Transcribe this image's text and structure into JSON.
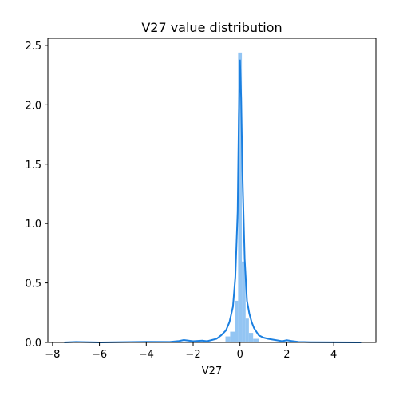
{
  "chart_data": {
    "type": "histogram+kde",
    "title": "V27 value distribution",
    "xlabel": "V27",
    "ylabel": "",
    "xlim": [
      -8.2,
      5.8
    ],
    "ylim": [
      0,
      2.56
    ],
    "xticks": [
      -8,
      -6,
      -4,
      -2,
      0,
      2,
      4
    ],
    "xtick_labels": [
      "−8",
      "−6",
      "−4",
      "−2",
      "0",
      "2",
      "4"
    ],
    "yticks": [
      0.0,
      0.5,
      1.0,
      1.5,
      2.0,
      2.5
    ],
    "ytick_labels": [
      "0.0",
      "0.5",
      "1.0",
      "1.5",
      "2.0",
      "2.5"
    ],
    "grid": false,
    "legend": "none",
    "colors": {
      "bar_fill": "#93c5f3",
      "kde_line": "#1a7fe0"
    },
    "bins": [
      {
        "x0": -0.62,
        "x1": -0.42,
        "density": 0.05
      },
      {
        "x0": -0.42,
        "x1": -0.22,
        "density": 0.09
      },
      {
        "x0": -0.22,
        "x1": -0.08,
        "density": 0.35
      },
      {
        "x0": -0.08,
        "x1": 0.08,
        "density": 2.44
      },
      {
        "x0": 0.08,
        "x1": 0.24,
        "density": 0.68
      },
      {
        "x0": 0.24,
        "x1": 0.38,
        "density": 0.2
      },
      {
        "x0": 0.38,
        "x1": 0.56,
        "density": 0.08
      },
      {
        "x0": 0.56,
        "x1": 0.8,
        "density": 0.03
      }
    ],
    "kde": {
      "x": [
        -7.5,
        -7.0,
        -6.0,
        -5.0,
        -4.0,
        -3.0,
        -2.6,
        -2.4,
        -2.0,
        -1.6,
        -1.4,
        -1.2,
        -1.0,
        -0.8,
        -0.6,
        -0.45,
        -0.3,
        -0.2,
        -0.1,
        -0.05,
        0.0,
        0.05,
        0.1,
        0.2,
        0.3,
        0.4,
        0.5,
        0.6,
        0.8,
        1.0,
        1.2,
        1.5,
        1.8,
        2.0,
        2.2,
        2.5,
        3.0,
        4.0,
        5.0,
        5.2
      ],
      "y": [
        0.0,
        0.004,
        0.0,
        0.003,
        0.005,
        0.004,
        0.012,
        0.02,
        0.01,
        0.015,
        0.01,
        0.02,
        0.03,
        0.06,
        0.1,
        0.17,
        0.3,
        0.55,
        1.1,
        1.9,
        2.38,
        2.05,
        1.45,
        0.7,
        0.35,
        0.24,
        0.17,
        0.12,
        0.06,
        0.04,
        0.03,
        0.02,
        0.01,
        0.018,
        0.012,
        0.004,
        0.002,
        0.001,
        0.0,
        0.0
      ]
    }
  }
}
